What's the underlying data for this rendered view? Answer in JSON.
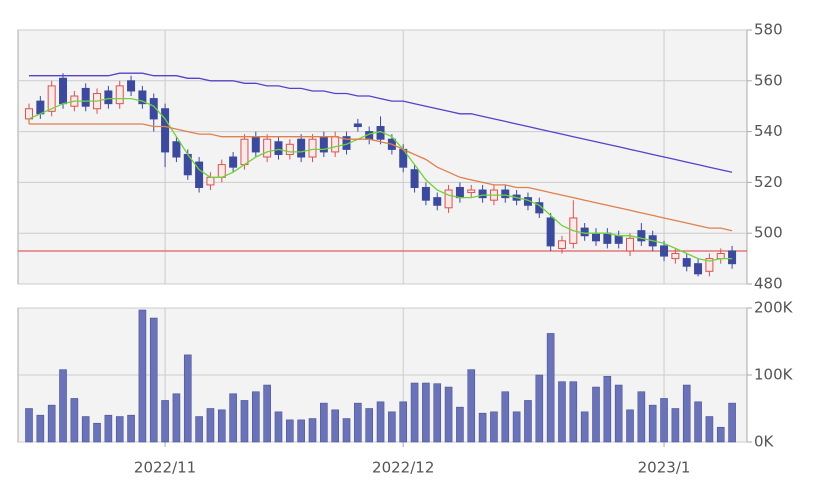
{
  "chart_data": [
    {
      "type": "candlestick",
      "open": [
        545,
        552,
        548,
        561,
        550,
        557,
        549,
        556,
        551,
        560,
        556,
        553,
        549,
        536,
        531,
        528,
        519,
        522,
        530,
        527,
        538,
        530,
        536,
        531,
        537,
        530,
        538,
        532,
        538,
        543,
        540,
        542,
        537,
        533,
        525,
        518,
        514,
        510,
        518,
        516,
        517,
        513,
        517,
        515,
        514,
        512,
        506,
        494,
        496,
        502,
        500,
        500,
        499,
        493,
        501,
        499,
        495,
        490,
        490,
        488,
        485,
        490,
        493
      ],
      "high": [
        551,
        554,
        560,
        563,
        556,
        559,
        557,
        558,
        560,
        562,
        558,
        555,
        551,
        538,
        533,
        530,
        524,
        529,
        532,
        539,
        540,
        539,
        538,
        537,
        539,
        539,
        540,
        540,
        540,
        545,
        542,
        546,
        539,
        535,
        527,
        520,
        516,
        519,
        520,
        519,
        519,
        519,
        519,
        517,
        516,
        514,
        508,
        499,
        513,
        504,
        502,
        502,
        501,
        500,
        504,
        501,
        497,
        494,
        492,
        490,
        492,
        494,
        495
      ],
      "low": [
        543,
        545,
        546,
        549,
        548,
        548,
        547,
        549,
        549,
        554,
        549,
        540,
        526,
        528,
        521,
        516,
        517,
        520,
        524,
        525,
        530,
        528,
        529,
        529,
        528,
        528,
        530,
        530,
        531,
        540,
        535,
        535,
        531,
        524,
        516,
        511,
        509,
        508,
        512,
        514,
        512,
        511,
        512,
        511,
        509,
        506,
        493,
        492,
        494,
        497,
        495,
        494,
        494,
        491,
        495,
        493,
        489,
        488,
        485,
        483,
        483,
        488,
        486
      ],
      "close": [
        549,
        547,
        558,
        551,
        554,
        550,
        555,
        551,
        558,
        556,
        551,
        545,
        532,
        530,
        523,
        518,
        522,
        527,
        526,
        537,
        532,
        537,
        531,
        535,
        530,
        537,
        532,
        538,
        533,
        542,
        537,
        537,
        533,
        526,
        518,
        513,
        511,
        517,
        514,
        517,
        514,
        517,
        514,
        513,
        511,
        508,
        495,
        497,
        506,
        499,
        497,
        496,
        496,
        498,
        497,
        495,
        491,
        492,
        487,
        484,
        490,
        492,
        488
      ],
      "up_color": "#d9534f",
      "down_color": "#3c4a9e",
      "series": [
        {
          "color": "#6fd23c",
          "values": [
            545,
            547,
            549,
            551,
            552,
            552,
            552,
            553,
            553,
            553,
            552,
            550,
            545,
            538,
            531,
            525,
            522,
            522,
            524,
            527,
            530,
            532,
            533,
            532,
            532,
            533,
            533,
            534,
            535,
            537,
            539,
            540,
            538,
            533,
            527,
            521,
            517,
            515,
            514,
            514,
            515,
            515,
            515,
            514,
            513,
            511,
            507,
            503,
            501,
            500,
            500,
            500,
            499,
            499,
            498,
            497,
            496,
            494,
            492,
            490,
            489,
            490,
            490
          ]
        },
        {
          "color": "#e0804a",
          "values": [
            543,
            543,
            543,
            543,
            543,
            543,
            543,
            543,
            543,
            543,
            543,
            542,
            542,
            541,
            540,
            539,
            539,
            538,
            538,
            538,
            538,
            538,
            538,
            538,
            538,
            538,
            538,
            538,
            537,
            537,
            537,
            536,
            535,
            533,
            531,
            529,
            526,
            524,
            522,
            521,
            520,
            519,
            519,
            518,
            518,
            517,
            516,
            515,
            514,
            513,
            512,
            511,
            510,
            509,
            508,
            507,
            506,
            505,
            504,
            503,
            502,
            502,
            501
          ]
        },
        {
          "color": "#5a40c8",
          "values": [
            562,
            562,
            562,
            562,
            562,
            562,
            562,
            562,
            563,
            563,
            563,
            562,
            562,
            562,
            561,
            561,
            560,
            560,
            560,
            559,
            559,
            558,
            558,
            557,
            557,
            556,
            556,
            555,
            555,
            554,
            554,
            553,
            552,
            552,
            551,
            550,
            549,
            548,
            547,
            547,
            546,
            545,
            544,
            543,
            542,
            541,
            540,
            539,
            538,
            537,
            536,
            535,
            534,
            533,
            532,
            531,
            530,
            529,
            528,
            527,
            526,
            525,
            524
          ]
        }
      ],
      "hline": {
        "value": 493,
        "color": "#e06060"
      },
      "ylim": [
        480,
        580
      ],
      "yticks": [
        480,
        500,
        520,
        540,
        560,
        580
      ],
      "grid": true
    },
    {
      "type": "bar",
      "categories": [
        null,
        null,
        null,
        null,
        null,
        null,
        null,
        null,
        null,
        null,
        null,
        null,
        "2022/11",
        null,
        null,
        null,
        null,
        null,
        null,
        null,
        null,
        null,
        null,
        null,
        null,
        null,
        null,
        null,
        null,
        null,
        null,
        null,
        null,
        "2022/12",
        null,
        null,
        null,
        null,
        null,
        null,
        null,
        null,
        null,
        null,
        null,
        null,
        null,
        null,
        null,
        null,
        null,
        null,
        null,
        null,
        null,
        null,
        "2023/1",
        null,
        null,
        null,
        null,
        null,
        null
      ],
      "values": [
        50000,
        40000,
        55000,
        108000,
        65000,
        38000,
        28000,
        40000,
        38000,
        40000,
        197000,
        185000,
        62000,
        72000,
        130000,
        38000,
        50000,
        48000,
        72000,
        62000,
        75000,
        85000,
        45000,
        33000,
        33000,
        35000,
        58000,
        48000,
        35000,
        58000,
        50000,
        60000,
        45000,
        60000,
        88000,
        88000,
        87000,
        82000,
        52000,
        108000,
        43000,
        45000,
        75000,
        45000,
        62000,
        100000,
        162000,
        90000,
        90000,
        45000,
        82000,
        98000,
        85000,
        48000,
        75000,
        55000,
        65000,
        50000,
        85000,
        60000,
        38000,
        22000,
        58000
      ],
      "color": "#6b73b8",
      "ylim": [
        0,
        200000
      ],
      "yticks": [
        {
          "value": 0,
          "label": "0K"
        },
        {
          "value": 100000,
          "label": "100K"
        },
        {
          "value": 200000,
          "label": "200K"
        }
      ],
      "grid": true
    }
  ]
}
